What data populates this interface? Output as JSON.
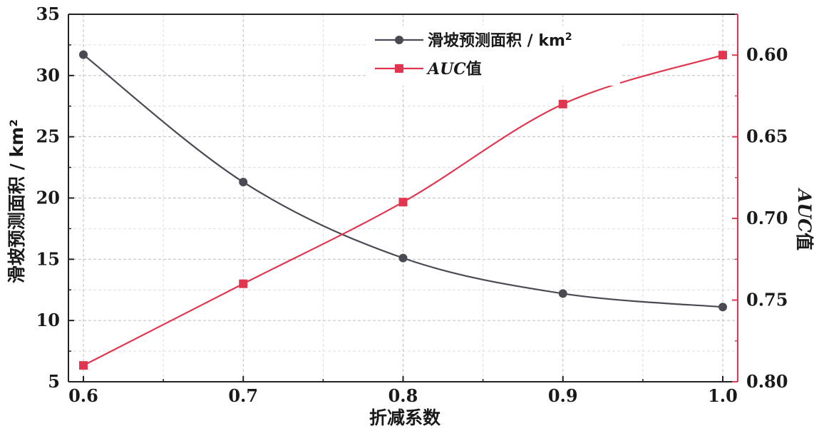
{
  "chart_data": {
    "type": "line",
    "x": [
      0.6,
      0.7,
      0.8,
      0.9,
      1.0
    ],
    "x_ticks": [
      "0.6",
      "0.7",
      "0.8",
      "0.9",
      "1.0"
    ],
    "xlabel": "折减系数",
    "xlim": [
      0.6,
      1.0
    ],
    "y_left": {
      "label": "滑坡预测面积 / km²",
      "lim": [
        5,
        35
      ],
      "ticks": [
        "5",
        "10",
        "15",
        "20",
        "25",
        "30",
        "35"
      ]
    },
    "y_right": {
      "label_main": "AUC",
      "label_suffix": "值",
      "lim": [
        0.8,
        0.575
      ],
      "inverted": true,
      "ticks": [
        "0.60",
        "0.65",
        "0.70",
        "0.75",
        "0.80"
      ],
      "color": "#e0364f"
    },
    "series": [
      {
        "name_main": "滑坡预测面积 / km",
        "name_sup": "2",
        "axis": "left",
        "marker": "circle",
        "color": "#4a4a55",
        "values": [
          31.7,
          21.3,
          15.1,
          12.2,
          11.1
        ]
      },
      {
        "name_main": "AUC",
        "name_suffix": "值",
        "axis": "right",
        "marker": "square",
        "color": "#e0364f",
        "values": [
          0.79,
          0.74,
          0.69,
          0.63,
          0.6
        ]
      }
    ],
    "grid": true,
    "legend_position": "top-right"
  }
}
